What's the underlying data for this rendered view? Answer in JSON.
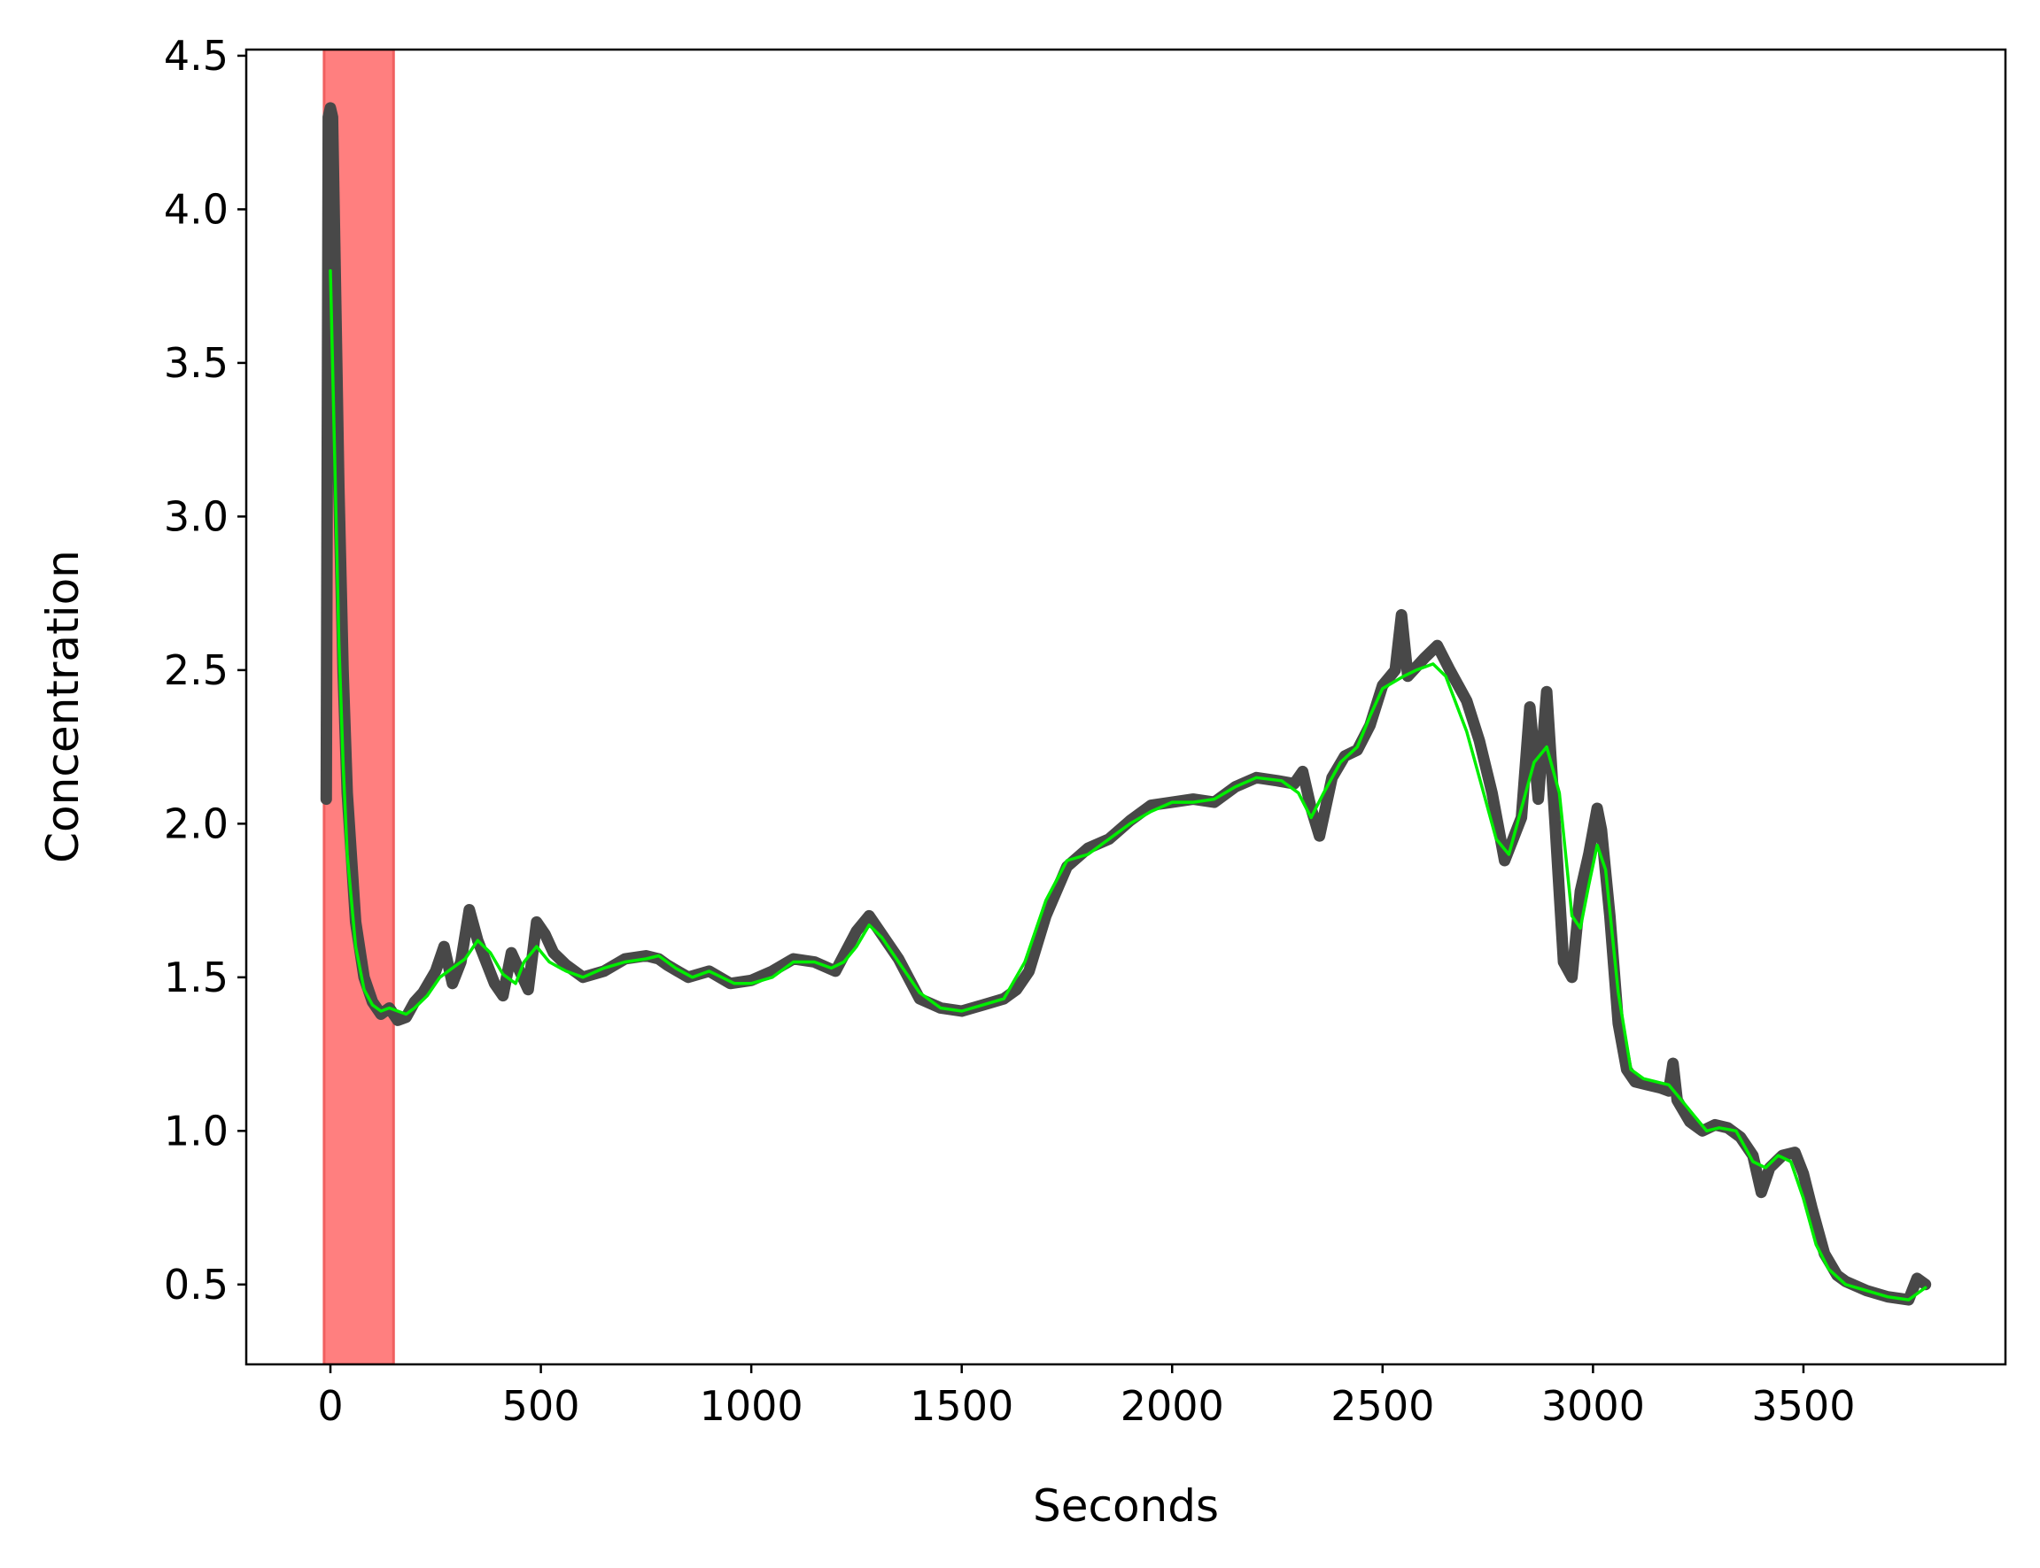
{
  "chart_data": {
    "type": "line",
    "title": "",
    "xlabel": "Seconds",
    "ylabel": "Concentration",
    "xlim": [
      -200,
      3980
    ],
    "ylim": [
      0.24,
      4.52
    ],
    "grid": false,
    "legend": "none",
    "x_ticks": [
      0,
      500,
      1000,
      1500,
      2000,
      2500,
      3000,
      3500
    ],
    "x_tick_labels": [
      "0",
      "500",
      "1000",
      "1500",
      "2000",
      "2500",
      "3000",
      "3500"
    ],
    "y_ticks": [
      0.5,
      1.0,
      1.5,
      2.0,
      2.5,
      3.0,
      3.5,
      4.0,
      4.5
    ],
    "y_tick_labels": [
      "0.5",
      "1.0",
      "1.5",
      "2.0",
      "2.5",
      "3.0",
      "3.5",
      "4.0",
      "4.5"
    ],
    "shaded_span": {
      "x_start": -15,
      "x_end": 150,
      "color": "#ff7f7f"
    },
    "series": [
      {
        "color": "#484848",
        "style": "thick-noisy",
        "x": [
          -10,
          -5,
          0,
          5,
          10,
          20,
          30,
          40,
          60,
          80,
          100,
          120,
          140,
          160,
          180,
          200,
          220,
          250,
          270,
          290,
          310,
          330,
          350,
          370,
          390,
          410,
          430,
          450,
          470,
          490,
          510,
          530,
          560,
          600,
          650,
          700,
          750,
          780,
          800,
          850,
          900,
          950,
          1000,
          1050,
          1100,
          1150,
          1200,
          1250,
          1280,
          1300,
          1350,
          1400,
          1450,
          1500,
          1550,
          1600,
          1630,
          1660,
          1700,
          1750,
          1800,
          1850,
          1900,
          1950,
          2000,
          2050,
          2100,
          2150,
          2200,
          2250,
          2290,
          2310,
          2330,
          2350,
          2380,
          2410,
          2440,
          2470,
          2500,
          2530,
          2545,
          2560,
          2600,
          2630,
          2660,
          2700,
          2730,
          2760,
          2790,
          2810,
          2830,
          2850,
          2870,
          2890,
          2910,
          2930,
          2950,
          2970,
          2990,
          3010,
          3020,
          3040,
          3060,
          3080,
          3100,
          3130,
          3160,
          3180,
          3190,
          3200,
          3230,
          3260,
          3290,
          3320,
          3350,
          3380,
          3400,
          3420,
          3450,
          3480,
          3500,
          3520,
          3550,
          3580,
          3600,
          3650,
          3700,
          3750,
          3770,
          3790
        ],
        "y": [
          2.08,
          4.3,
          4.33,
          4.3,
          3.9,
          3.1,
          2.5,
          2.1,
          1.68,
          1.5,
          1.42,
          1.38,
          1.4,
          1.36,
          1.37,
          1.42,
          1.45,
          1.52,
          1.6,
          1.48,
          1.55,
          1.72,
          1.62,
          1.55,
          1.48,
          1.44,
          1.58,
          1.52,
          1.46,
          1.68,
          1.64,
          1.58,
          1.54,
          1.5,
          1.52,
          1.56,
          1.57,
          1.56,
          1.54,
          1.5,
          1.52,
          1.48,
          1.49,
          1.52,
          1.56,
          1.55,
          1.52,
          1.65,
          1.7,
          1.66,
          1.56,
          1.43,
          1.4,
          1.39,
          1.41,
          1.43,
          1.46,
          1.52,
          1.7,
          1.86,
          1.92,
          1.95,
          2.01,
          2.06,
          2.07,
          2.08,
          2.07,
          2.12,
          2.15,
          2.14,
          2.13,
          2.17,
          2.05,
          1.96,
          2.15,
          2.22,
          2.24,
          2.32,
          2.45,
          2.5,
          2.68,
          2.48,
          2.54,
          2.58,
          2.5,
          2.4,
          2.27,
          2.1,
          1.88,
          1.95,
          2.02,
          2.38,
          2.08,
          2.43,
          2.0,
          1.55,
          1.5,
          1.78,
          1.9,
          2.05,
          1.98,
          1.7,
          1.35,
          1.2,
          1.16,
          1.15,
          1.14,
          1.13,
          1.22,
          1.1,
          1.03,
          1.0,
          1.02,
          1.01,
          0.98,
          0.92,
          0.8,
          0.88,
          0.92,
          0.93,
          0.86,
          0.75,
          0.6,
          0.53,
          0.51,
          0.48,
          0.46,
          0.45,
          0.52,
          0.5
        ]
      },
      {
        "color": "#00ee00",
        "style": "smooth",
        "x": [
          0,
          10,
          20,
          30,
          40,
          60,
          80,
          100,
          120,
          140,
          160,
          180,
          200,
          230,
          260,
          290,
          320,
          350,
          380,
          410,
          440,
          460,
          490,
          520,
          560,
          600,
          650,
          700,
          750,
          780,
          820,
          860,
          900,
          930,
          960,
          1000,
          1050,
          1100,
          1150,
          1190,
          1220,
          1250,
          1280,
          1310,
          1350,
          1400,
          1450,
          1500,
          1550,
          1600,
          1650,
          1700,
          1750,
          1800,
          1850,
          1900,
          1950,
          2000,
          2050,
          2100,
          2150,
          2200,
          2260,
          2300,
          2330,
          2360,
          2400,
          2440,
          2470,
          2500,
          2550,
          2580,
          2620,
          2650,
          2700,
          2740,
          2770,
          2800,
          2830,
          2860,
          2890,
          2920,
          2950,
          2970,
          2990,
          3010,
          3030,
          3060,
          3090,
          3120,
          3150,
          3180,
          3210,
          3240,
          3270,
          3300,
          3340,
          3380,
          3410,
          3440,
          3470,
          3500,
          3530,
          3560,
          3600,
          3650,
          3700,
          3750,
          3790
        ],
        "y": [
          3.8,
          3.2,
          2.6,
          2.2,
          1.9,
          1.6,
          1.46,
          1.41,
          1.39,
          1.4,
          1.39,
          1.38,
          1.4,
          1.44,
          1.5,
          1.53,
          1.56,
          1.62,
          1.58,
          1.51,
          1.48,
          1.55,
          1.6,
          1.55,
          1.52,
          1.5,
          1.53,
          1.55,
          1.56,
          1.57,
          1.53,
          1.5,
          1.52,
          1.5,
          1.48,
          1.48,
          1.5,
          1.55,
          1.55,
          1.53,
          1.55,
          1.6,
          1.67,
          1.63,
          1.55,
          1.45,
          1.4,
          1.39,
          1.41,
          1.43,
          1.55,
          1.75,
          1.88,
          1.9,
          1.95,
          2.0,
          2.04,
          2.07,
          2.07,
          2.08,
          2.12,
          2.15,
          2.14,
          2.1,
          2.02,
          2.1,
          2.2,
          2.25,
          2.35,
          2.44,
          2.48,
          2.5,
          2.52,
          2.48,
          2.3,
          2.1,
          1.95,
          1.9,
          2.05,
          2.2,
          2.25,
          2.1,
          1.7,
          1.66,
          1.8,
          1.93,
          1.85,
          1.45,
          1.2,
          1.17,
          1.16,
          1.15,
          1.1,
          1.05,
          1.0,
          1.01,
          1.0,
          0.9,
          0.88,
          0.92,
          0.9,
          0.78,
          0.63,
          0.55,
          0.5,
          0.48,
          0.46,
          0.45,
          0.49
        ]
      }
    ]
  }
}
